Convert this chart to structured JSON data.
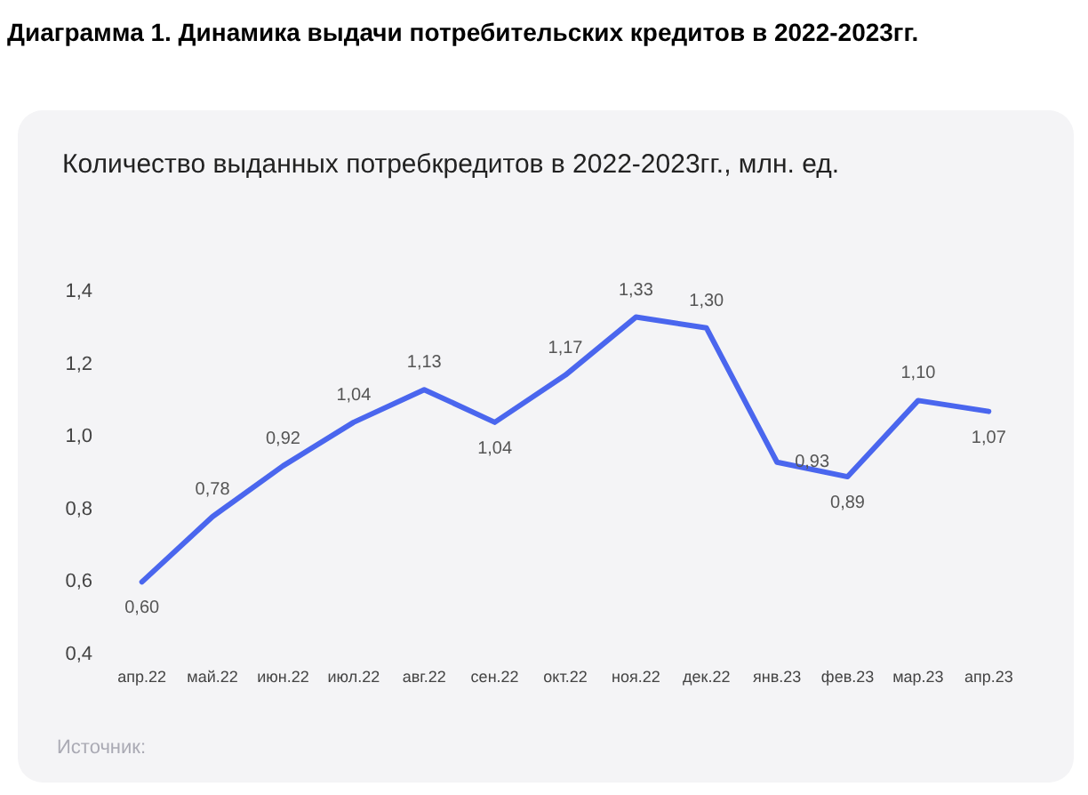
{
  "chart_data": {
    "type": "line",
    "title": "Диаграмма 1. Динамика выдачи потребительских кредитов в 2022-2023гг.",
    "subtitle": "Количество выданных потребкредитов в 2022-2023гг., млн. ед.",
    "categories": [
      "апр.22",
      "май.22",
      "июн.22",
      "июл.22",
      "авг.22",
      "сен.22",
      "окт.22",
      "ноя.22",
      "дек.22",
      "янв.23",
      "фев.23",
      "мар.23",
      "апр.23"
    ],
    "series": [
      {
        "color": "#4a66ee",
        "values": [
          0.6,
          0.78,
          0.92,
          1.04,
          1.13,
          1.04,
          1.17,
          1.33,
          1.3,
          0.93,
          0.89,
          1.1,
          1.07
        ],
        "value_labels": [
          "0,60",
          "0,78",
          "0,92",
          "1,04",
          "1,13",
          "1,04",
          "1,17",
          "1,33",
          "1,30",
          "0,93",
          "0,89",
          "1,10",
          "1,07"
        ]
      }
    ],
    "ylim": [
      0.4,
      1.4
    ],
    "yticks": [
      {
        "value": 0.4,
        "label": "0,4"
      },
      {
        "value": 0.6,
        "label": "0,6"
      },
      {
        "value": 0.8,
        "label": "0,8"
      },
      {
        "value": 1.0,
        "label": "1,0"
      },
      {
        "value": 1.2,
        "label": "1,2"
      },
      {
        "value": 1.4,
        "label": "1,4"
      }
    ],
    "grid": false,
    "marker": "none",
    "line_style": "solid",
    "annotations": [
      "Источник:"
    ]
  }
}
